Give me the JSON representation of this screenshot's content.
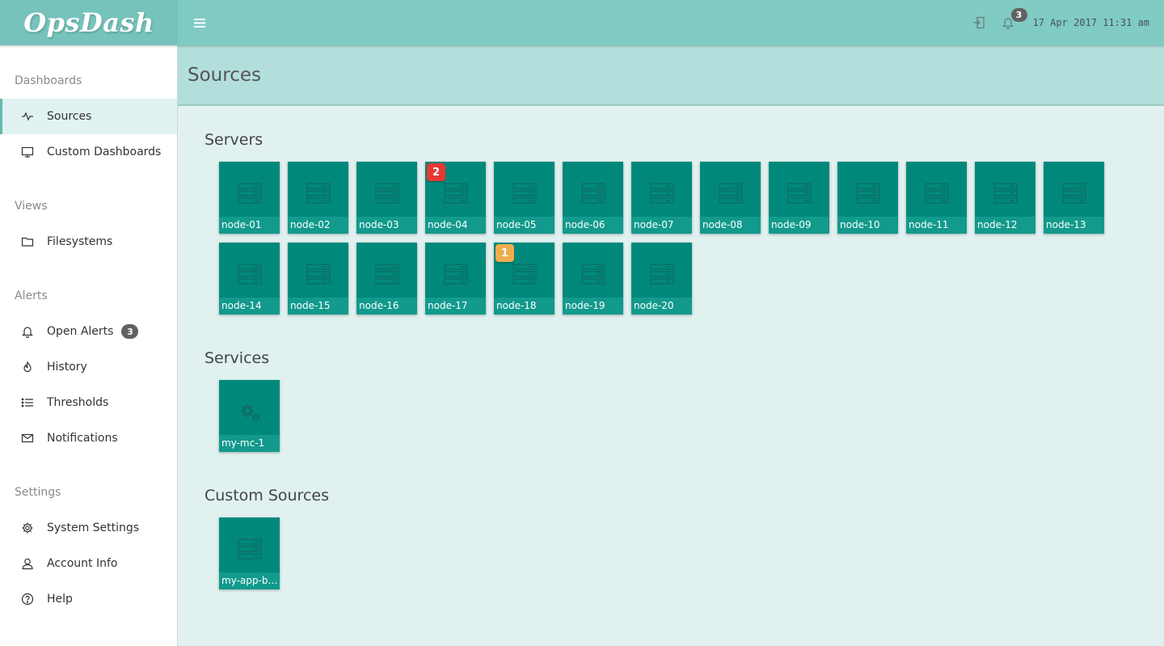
{
  "app": {
    "brand": "OpsDash"
  },
  "topbar": {
    "icons": {
      "menu": "hamburger-icon",
      "logout": "logout-icon",
      "bell": "bell-icon"
    },
    "bell_count": "3",
    "datetime": "17 Apr 2017 11:31 am"
  },
  "sidebar": {
    "groups": {
      "dashboards": "Dashboards",
      "views": "Views",
      "alerts": "Alerts",
      "settings": "Settings"
    },
    "items": {
      "sources": "Sources",
      "custom_dashboards": "Custom Dashboards",
      "filesystems": "Filesystems",
      "open_alerts": "Open Alerts",
      "open_alerts_count": "3",
      "history": "History",
      "thresholds": "Thresholds",
      "notifications": "Notifications",
      "system_settings": "System Settings",
      "account_info": "Account Info",
      "help": "Help"
    }
  },
  "page": {
    "title": "Sources"
  },
  "sections": {
    "servers": {
      "title": "Servers",
      "tiles": [
        {
          "label": "node-01"
        },
        {
          "label": "node-02"
        },
        {
          "label": "node-03"
        },
        {
          "label": "node-04",
          "alerts": "2",
          "severity": "red"
        },
        {
          "label": "node-05"
        },
        {
          "label": "node-06"
        },
        {
          "label": "node-07"
        },
        {
          "label": "node-08"
        },
        {
          "label": "node-09"
        },
        {
          "label": "node-10"
        },
        {
          "label": "node-11"
        },
        {
          "label": "node-12"
        },
        {
          "label": "node-13"
        },
        {
          "label": "node-14"
        },
        {
          "label": "node-15"
        },
        {
          "label": "node-16"
        },
        {
          "label": "node-17"
        },
        {
          "label": "node-18",
          "alerts": "1",
          "severity": "amber"
        },
        {
          "label": "node-19"
        },
        {
          "label": "node-20"
        }
      ]
    },
    "services": {
      "title": "Services",
      "tiles": [
        {
          "label": "my-mc-1"
        }
      ]
    },
    "custom_sources": {
      "title": "Custom Sources",
      "tiles": [
        {
          "label": "my-app-bac..."
        }
      ]
    }
  },
  "colors": {
    "topbar": "#80cbc4",
    "brand_bg": "#76c3bb",
    "page_header": "#b2dfdb",
    "content_bg": "#e0f1f0",
    "tile": "#00897b",
    "tile_label": "#129a8c",
    "alert_red": "#e53935",
    "alert_amber": "#f0ad4e"
  }
}
